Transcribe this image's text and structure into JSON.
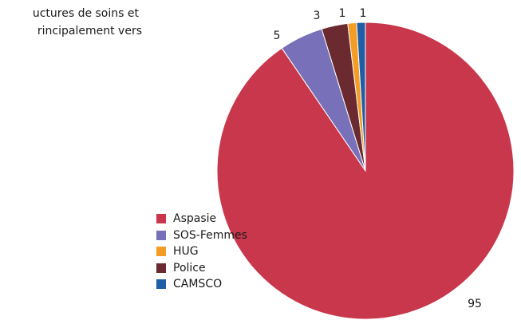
{
  "intro_text": {
    "line1": "uctures de soins et",
    "line2": "rincipalement vers"
  },
  "chart_data": {
    "type": "pie",
    "categories": [
      "Aspasie",
      "SOS-Femmes",
      "Police",
      "HUG",
      "CAMSCO"
    ],
    "values": [
      95,
      5,
      3,
      1,
      1
    ],
    "colors": [
      "#c8374c",
      "#7870b8",
      "#6a2a30",
      "#f39c26",
      "#1f5ea6"
    ],
    "data_labels": [
      "95",
      "5",
      "3",
      "1",
      "1"
    ]
  },
  "legend": [
    {
      "label": "Aspasie",
      "color": "#c8374c"
    },
    {
      "label": "SOS-Femmes",
      "color": "#7870b8"
    },
    {
      "label": "HUG",
      "color": "#f39c26"
    },
    {
      "label": "Police",
      "color": "#6a2a30"
    },
    {
      "label": "CAMSCO",
      "color": "#1f5ea6"
    }
  ]
}
